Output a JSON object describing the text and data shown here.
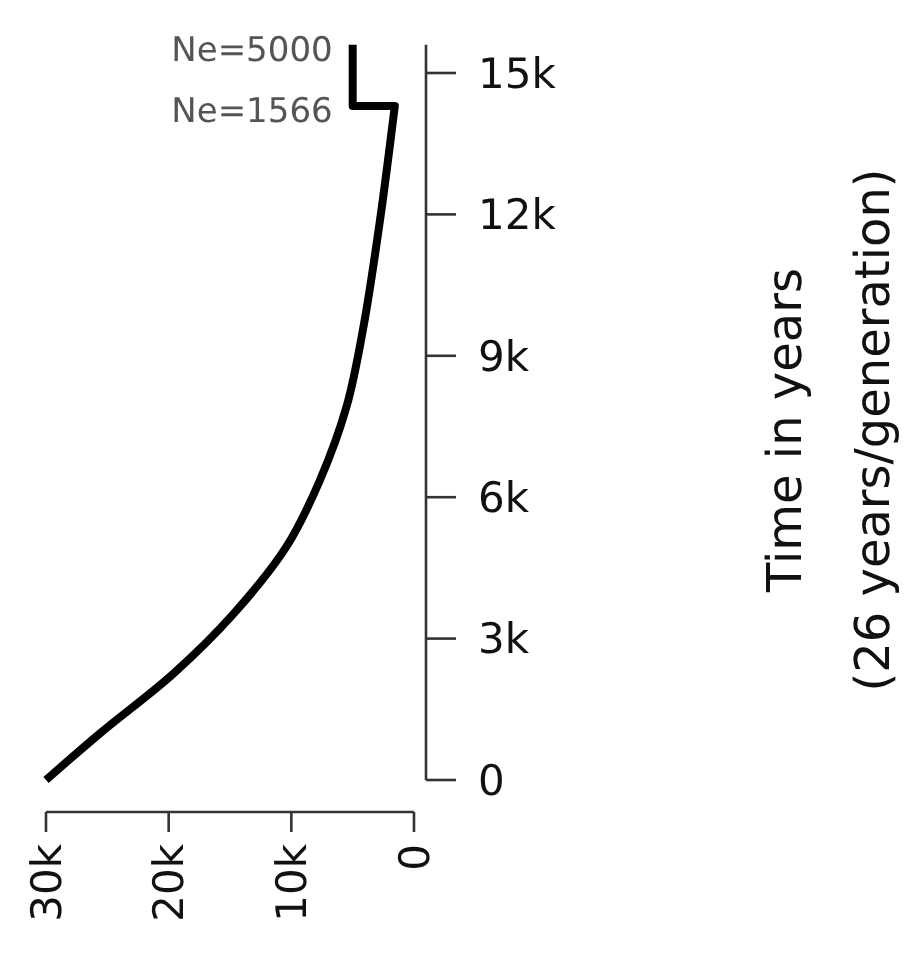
{
  "chart_data": {
    "type": "line",
    "ylabel": "Time in years\n(26 years/generation)",
    "series": [
      {
        "color": "#000000",
        "x": [
          30000,
          25600,
          19600,
          14700,
          10400,
          7670,
          5500,
          4130,
          2770,
          1566,
          5000,
          5000
        ],
        "values": [
          0,
          990,
          2260,
          3530,
          4950,
          6360,
          7920,
          9600,
          11880,
          14300,
          14300,
          15600
        ]
      }
    ],
    "xlim": [
      30000,
      0
    ],
    "xticks": [
      {
        "value": 30000,
        "label": "30k"
      },
      {
        "value": 20000,
        "label": "20k"
      },
      {
        "value": 10000,
        "label": "10k"
      },
      0
    ],
    "ylim": [
      0,
      15600
    ],
    "yticks": [
      0,
      {
        "value": 3000,
        "label": "3k"
      },
      {
        "value": 6000,
        "label": "6k"
      },
      {
        "value": 9000,
        "label": "9k"
      },
      {
        "value": 12000,
        "label": "12k"
      },
      {
        "value": 15000,
        "label": "15k"
      }
    ],
    "annotations": [
      {
        "text": "Ne=5000",
        "x": 5000,
        "y": 15600
      },
      {
        "text": "Ne=1566",
        "x": 1566,
        "y": 14300
      }
    ],
    "marker": "none",
    "line_style": "solid"
  }
}
